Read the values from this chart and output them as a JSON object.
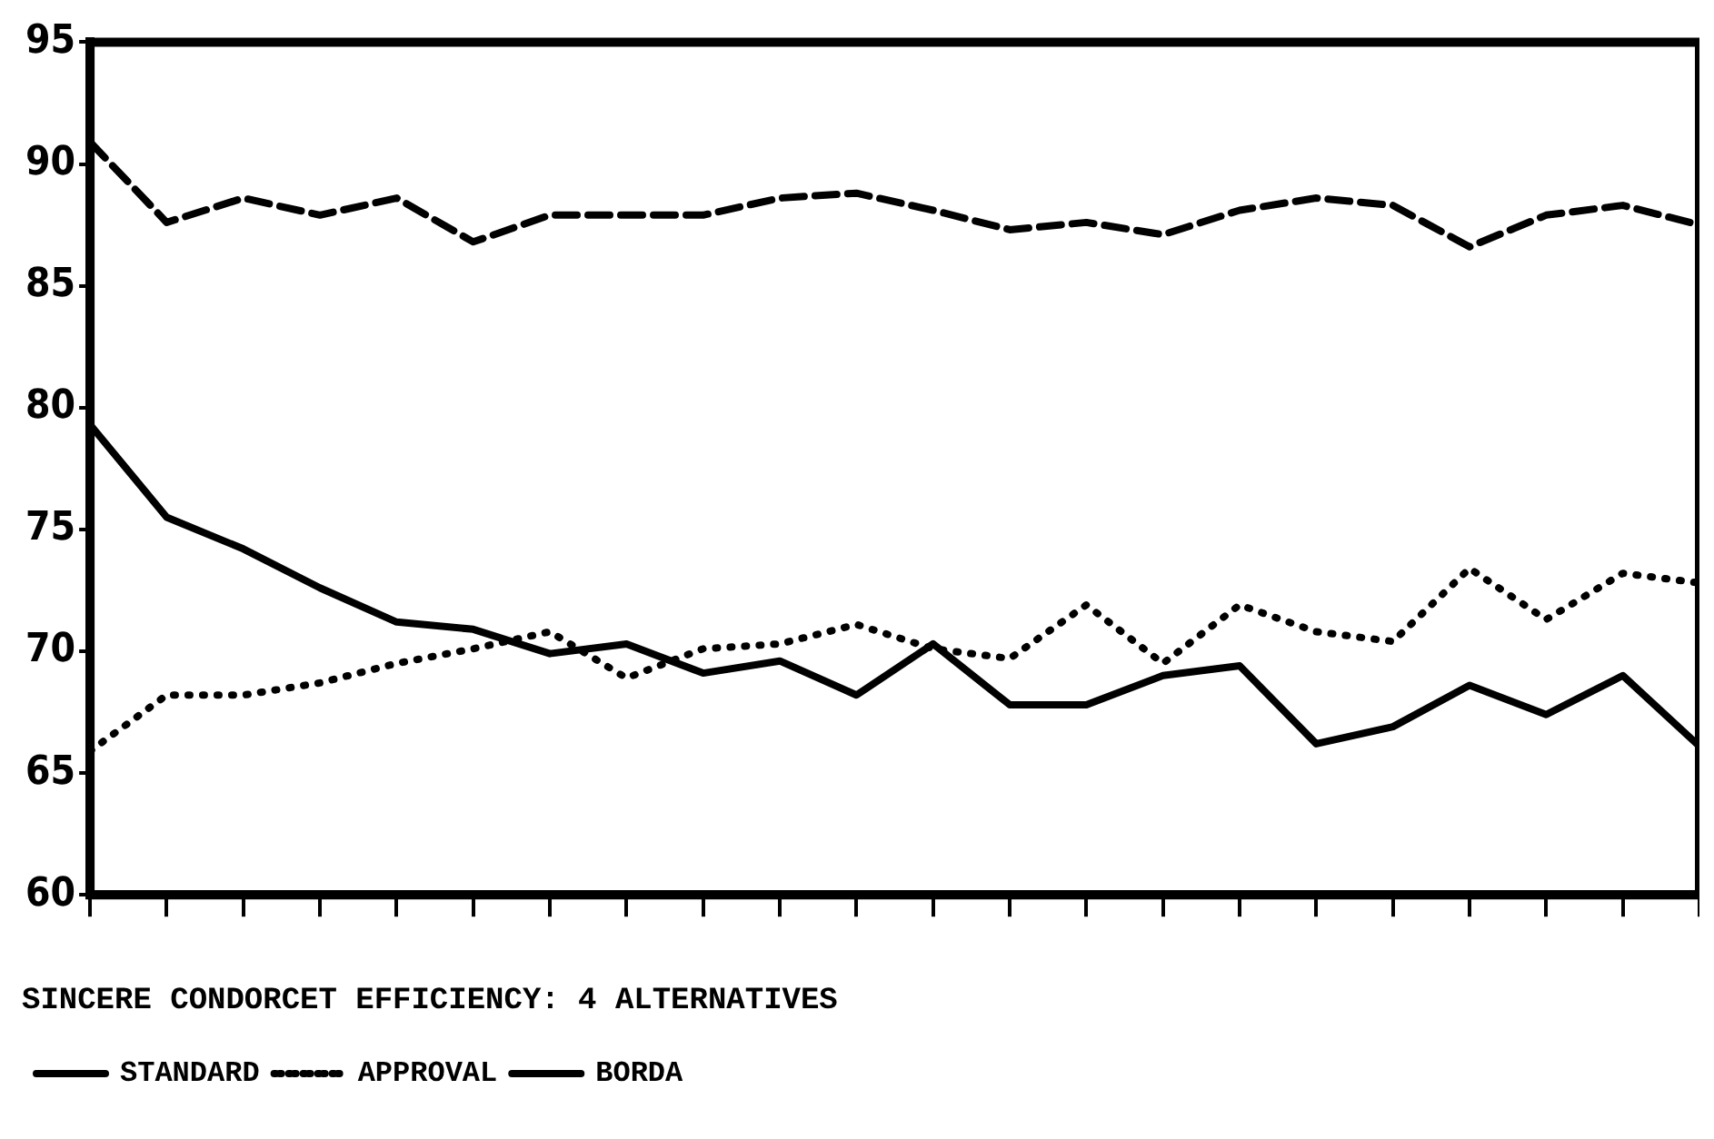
{
  "chart_data": {
    "type": "line",
    "title": "SINCERE CONDORCET EFFICIENCY: 4 ALTERNATIVES",
    "categories": [
      null,
      null,
      null,
      null,
      null,
      null,
      null,
      null,
      null,
      null,
      null,
      null,
      null,
      null,
      null,
      null,
      null,
      null,
      null,
      null,
      null,
      null
    ],
    "series": [
      {
        "name": "STANDARD",
        "color": "#000000",
        "line_style": "solid",
        "values": [
          79.3,
          75.5,
          74.2,
          72.6,
          71.2,
          70.9,
          69.9,
          70.3,
          69.1,
          69.6,
          68.2,
          70.3,
          67.8,
          67.8,
          69.0,
          69.4,
          66.2,
          66.9,
          68.6,
          67.4,
          69.0,
          66.1
        ]
      },
      {
        "name": "APPROVAL",
        "color": "#000000",
        "line_style": "dotted",
        "values": [
          65.9,
          68.2,
          68.2,
          68.7,
          69.5,
          70.1,
          70.8,
          68.9,
          70.1,
          70.3,
          71.1,
          70.1,
          69.7,
          71.9,
          69.5,
          71.9,
          70.8,
          70.4,
          73.4,
          71.3,
          73.2,
          72.8
        ]
      },
      {
        "name": "BORDA",
        "color": "#000000",
        "line_style": "dashed",
        "values": [
          90.9,
          87.6,
          88.6,
          87.9,
          88.6,
          86.8,
          87.9,
          87.9,
          87.9,
          88.6,
          88.8,
          88.1,
          87.3,
          87.6,
          87.1,
          88.1,
          88.6,
          88.3,
          86.6,
          87.9,
          88.3,
          87.5
        ]
      }
    ],
    "ylim": [
      60,
      95
    ],
    "yticks": [
      60,
      65,
      70,
      75,
      80,
      85,
      90,
      95
    ],
    "tick_labels": "y",
    "grid": false,
    "legend": "bottom left",
    "marker": "none"
  }
}
